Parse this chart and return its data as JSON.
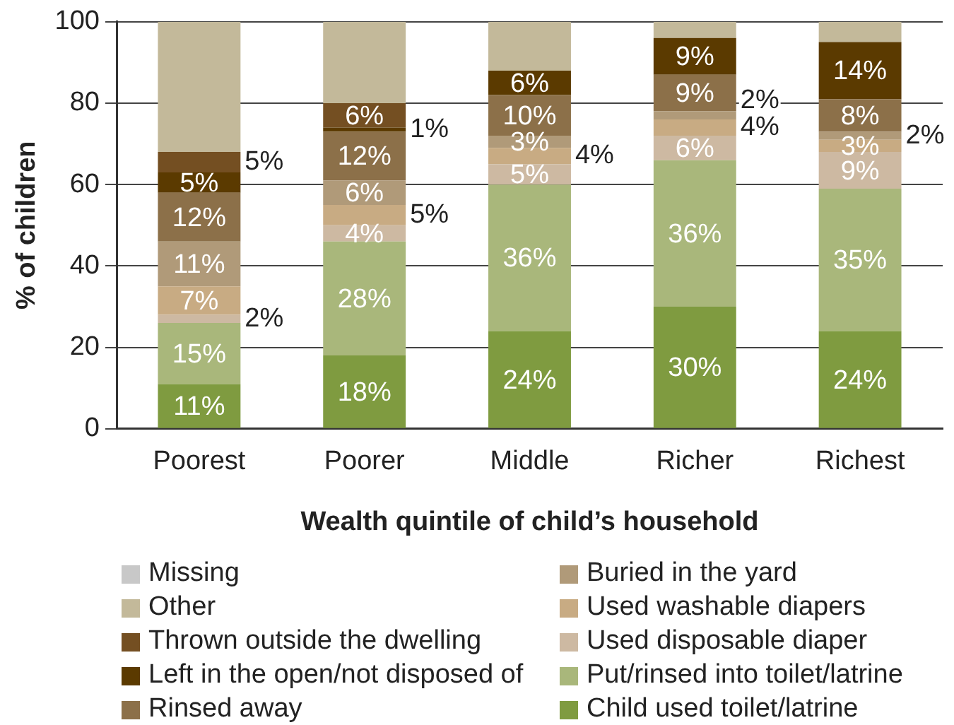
{
  "chart_data": {
    "type": "bar",
    "stacked": true,
    "xlabel": "Wealth quintile of child’s household",
    "ylabel": "% of children",
    "categories": [
      "Poorest",
      "Poorer",
      "Middle",
      "Richer",
      "Richest"
    ],
    "ylim": [
      0,
      100
    ],
    "yticks": [
      0,
      20,
      40,
      60,
      80,
      100
    ],
    "grid": "y",
    "legend": "bottom",
    "series": [
      {
        "name": "Child used toilet/latrine",
        "color": "#7f9b40",
        "values": [
          11,
          18,
          24,
          30,
          24
        ],
        "value_labels": [
          "11%",
          "18%",
          "24%",
          "30%",
          "24%"
        ]
      },
      {
        "name": "Put/rinsed into toilet/latrine",
        "color": "#a9b77b",
        "values": [
          15,
          28,
          36,
          36,
          35
        ],
        "value_labels": [
          "15%",
          "28%",
          "36%",
          "36%",
          "35%"
        ]
      },
      {
        "name": "Used disposable diaper",
        "color": "#cdb9a2",
        "values": [
          2,
          4,
          5,
          6,
          9
        ],
        "value_labels": [
          "2%",
          "4%",
          "5%",
          "6%",
          "9%"
        ]
      },
      {
        "name": "Used washable diapers",
        "color": "#c8ab83",
        "values": [
          7,
          5,
          4,
          4,
          3
        ],
        "value_labels": [
          "7%",
          "5%",
          "4%",
          "4%",
          "3%"
        ]
      },
      {
        "name": "Buried in the yard",
        "color": "#b09a79",
        "values": [
          11,
          6,
          3,
          2,
          2
        ],
        "value_labels": [
          "11%",
          "6%",
          "3%",
          "2%",
          "2%"
        ]
      },
      {
        "name": "Rinsed away",
        "color": "#8c7049",
        "values": [
          12,
          12,
          10,
          9,
          8
        ],
        "value_labels": [
          "12%",
          "12%",
          "10%",
          "9%",
          "8%"
        ]
      },
      {
        "name": "Left in the open/not disposed of",
        "color": "#5b3a00",
        "values": [
          5,
          1,
          6,
          9,
          14
        ],
        "value_labels": [
          "5%",
          "1%",
          "6%",
          "9%",
          "14%"
        ]
      },
      {
        "name": "Thrown outside the dwelling",
        "color": "#744f22",
        "values": [
          5,
          6,
          0,
          0,
          0
        ],
        "value_labels": [
          "5%",
          "6%",
          null,
          null,
          null
        ]
      },
      {
        "name": "Other",
        "color": "#c3b99a",
        "values": [
          32,
          20,
          12,
          4,
          5
        ]
      },
      {
        "name": "Missing",
        "color": "#c8c8c8",
        "values": [
          0,
          0,
          0,
          0,
          0
        ]
      }
    ]
  }
}
